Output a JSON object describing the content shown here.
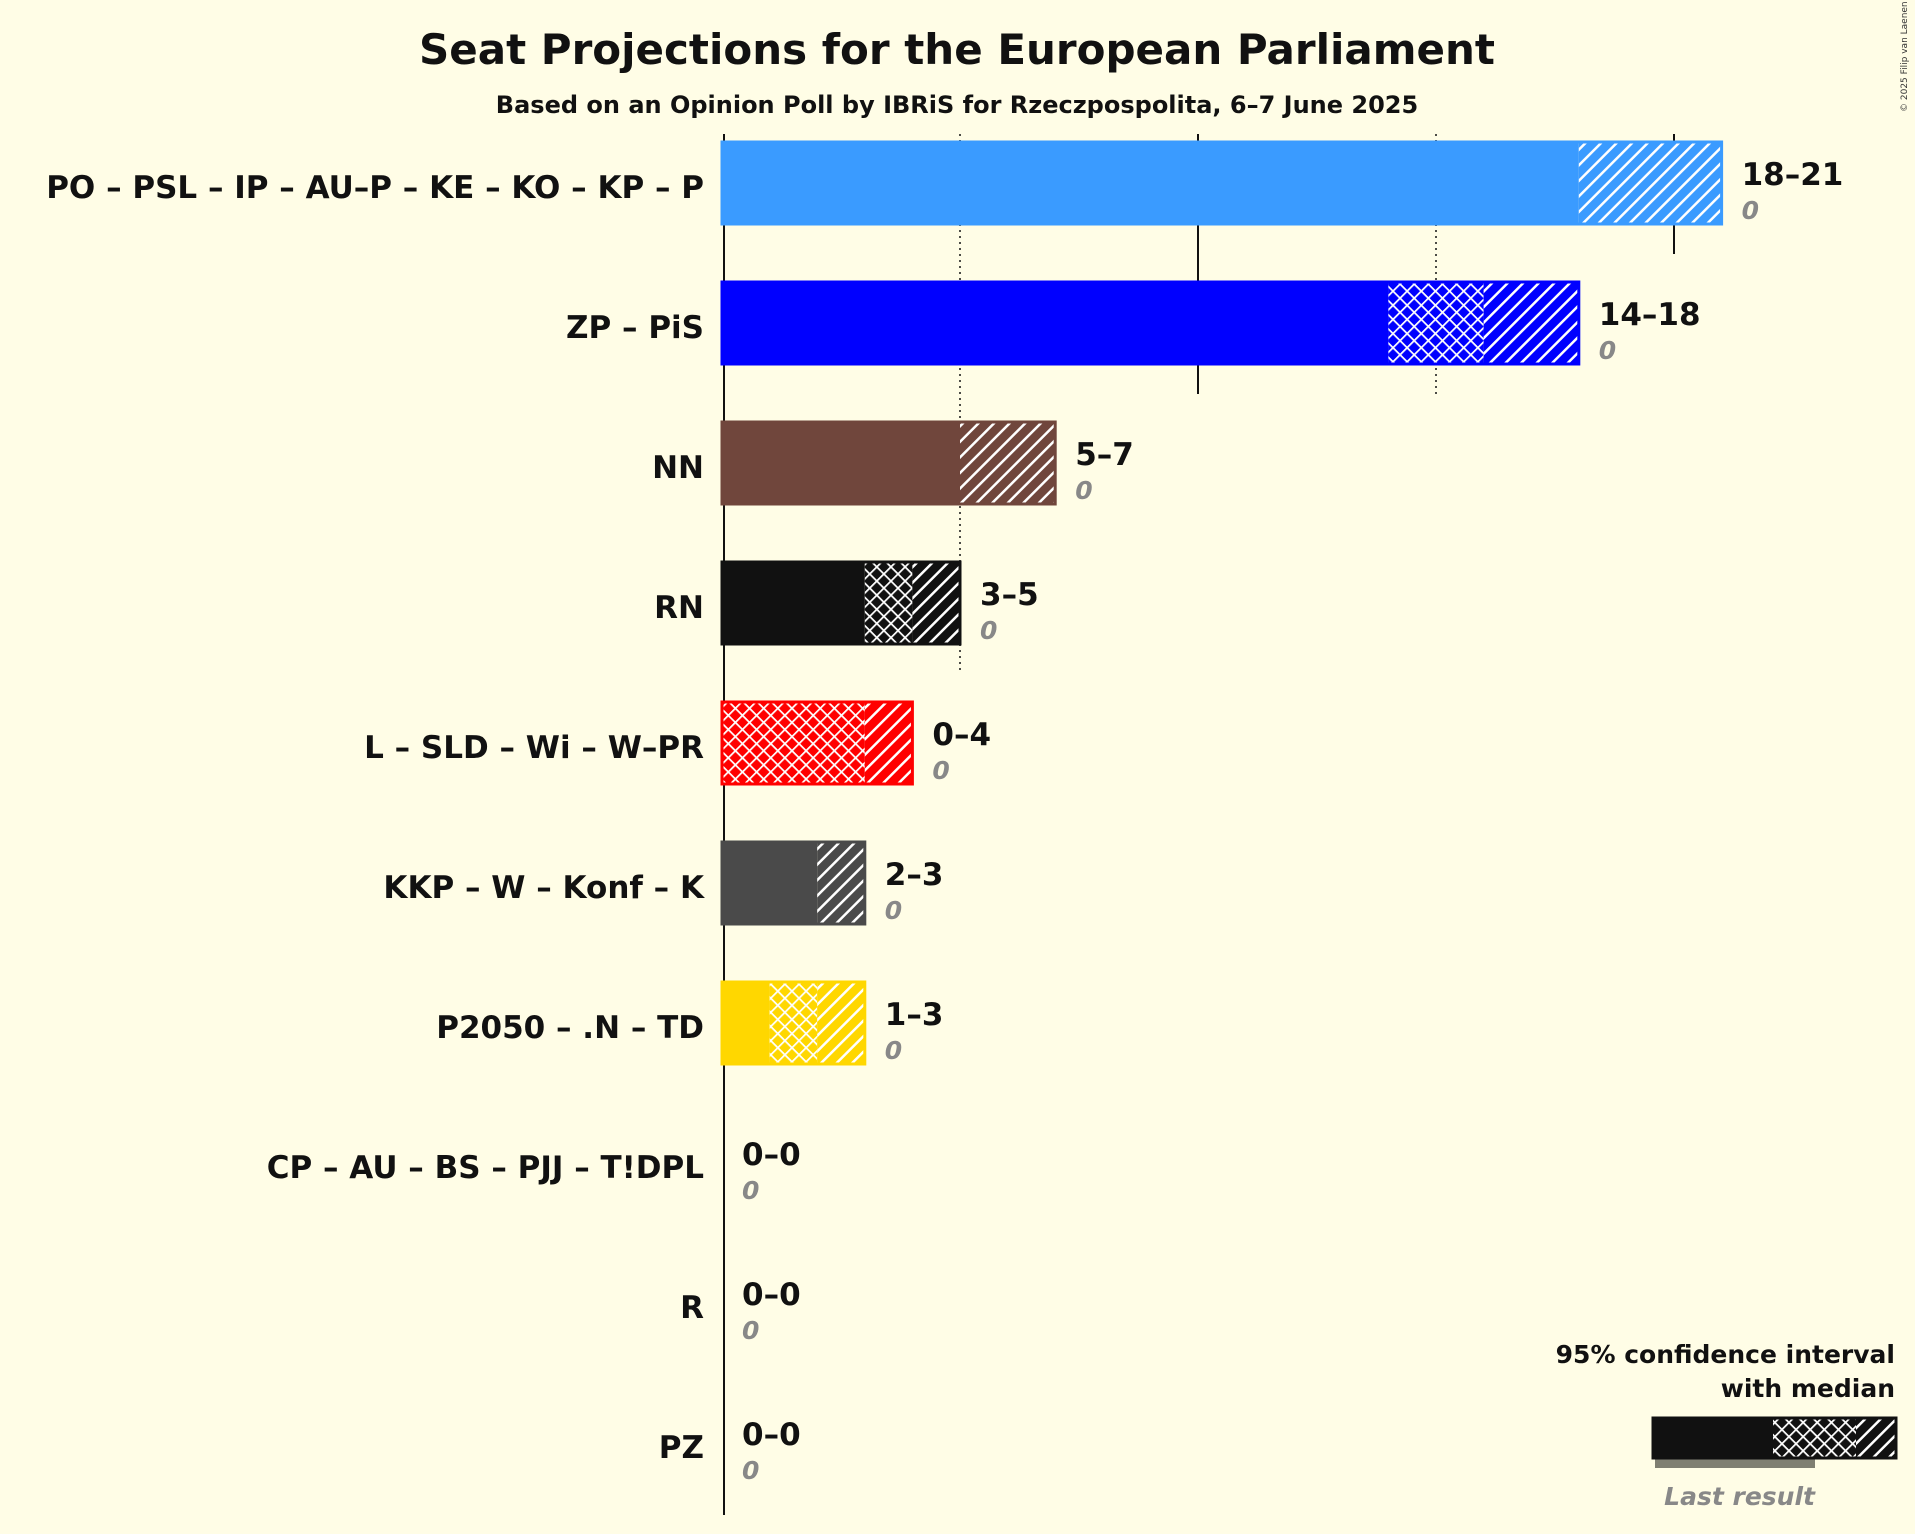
{
  "chart_data": {
    "type": "bar",
    "title": "Seat Projections for the European Parliament",
    "subtitle": "Based on an Opinion Poll by IBRiS for Rzeczpospolita, 6–7 June 2025",
    "copyright": "© 2025 Filip van Laenen",
    "xlim": [
      0,
      21
    ],
    "gridlines_solid": [
      0,
      10,
      20
    ],
    "gridlines_dotted": [
      5,
      15
    ],
    "parties": [
      {
        "name": "PO – PSL – IP – AU–P – KE – KO – KP – P",
        "low": 18,
        "median": 18,
        "high": 21,
        "range_label": "18–21",
        "last_result": "0",
        "color": "#3a9bff"
      },
      {
        "name": "ZP – PiS",
        "low": 14,
        "median": 16,
        "high": 18,
        "range_label": "14–18",
        "last_result": "0",
        "color": "#0000ff"
      },
      {
        "name": "NN",
        "low": 5,
        "median": 5,
        "high": 7,
        "range_label": "5–7",
        "last_result": "0",
        "color": "#70463c"
      },
      {
        "name": "RN",
        "low": 3,
        "median": 4,
        "high": 5,
        "range_label": "3–5",
        "last_result": "0",
        "color": "#111111"
      },
      {
        "name": "L – SLD – Wi – W–PR",
        "low": 0,
        "median": 3,
        "high": 4,
        "range_label": "0–4",
        "last_result": "0",
        "color": "#ff0000"
      },
      {
        "name": "KKP – W – Konf – K",
        "low": 2,
        "median": 2,
        "high": 3,
        "range_label": "2–3",
        "last_result": "0",
        "color": "#4a4a4a"
      },
      {
        "name": "P2050 – .N – TD",
        "low": 1,
        "median": 2,
        "high": 3,
        "range_label": "1–3",
        "last_result": "0",
        "color": "#ffd700"
      },
      {
        "name": "CP – AU – BS – PJJ – T!DPL",
        "low": 0,
        "median": 0,
        "high": 0,
        "range_label": "0–0",
        "last_result": "0",
        "color": "#888888"
      },
      {
        "name": "R",
        "low": 0,
        "median": 0,
        "high": 0,
        "range_label": "0–0",
        "last_result": "0",
        "color": "#888888"
      },
      {
        "name": "PZ",
        "low": 0,
        "median": 0,
        "high": 0,
        "range_label": "0–0",
        "last_result": "0",
        "color": "#888888"
      }
    ],
    "legend": {
      "line1": "95% confidence interval",
      "line2": "with median",
      "last_result": "Last result",
      "placement": "bottom-right"
    }
  }
}
